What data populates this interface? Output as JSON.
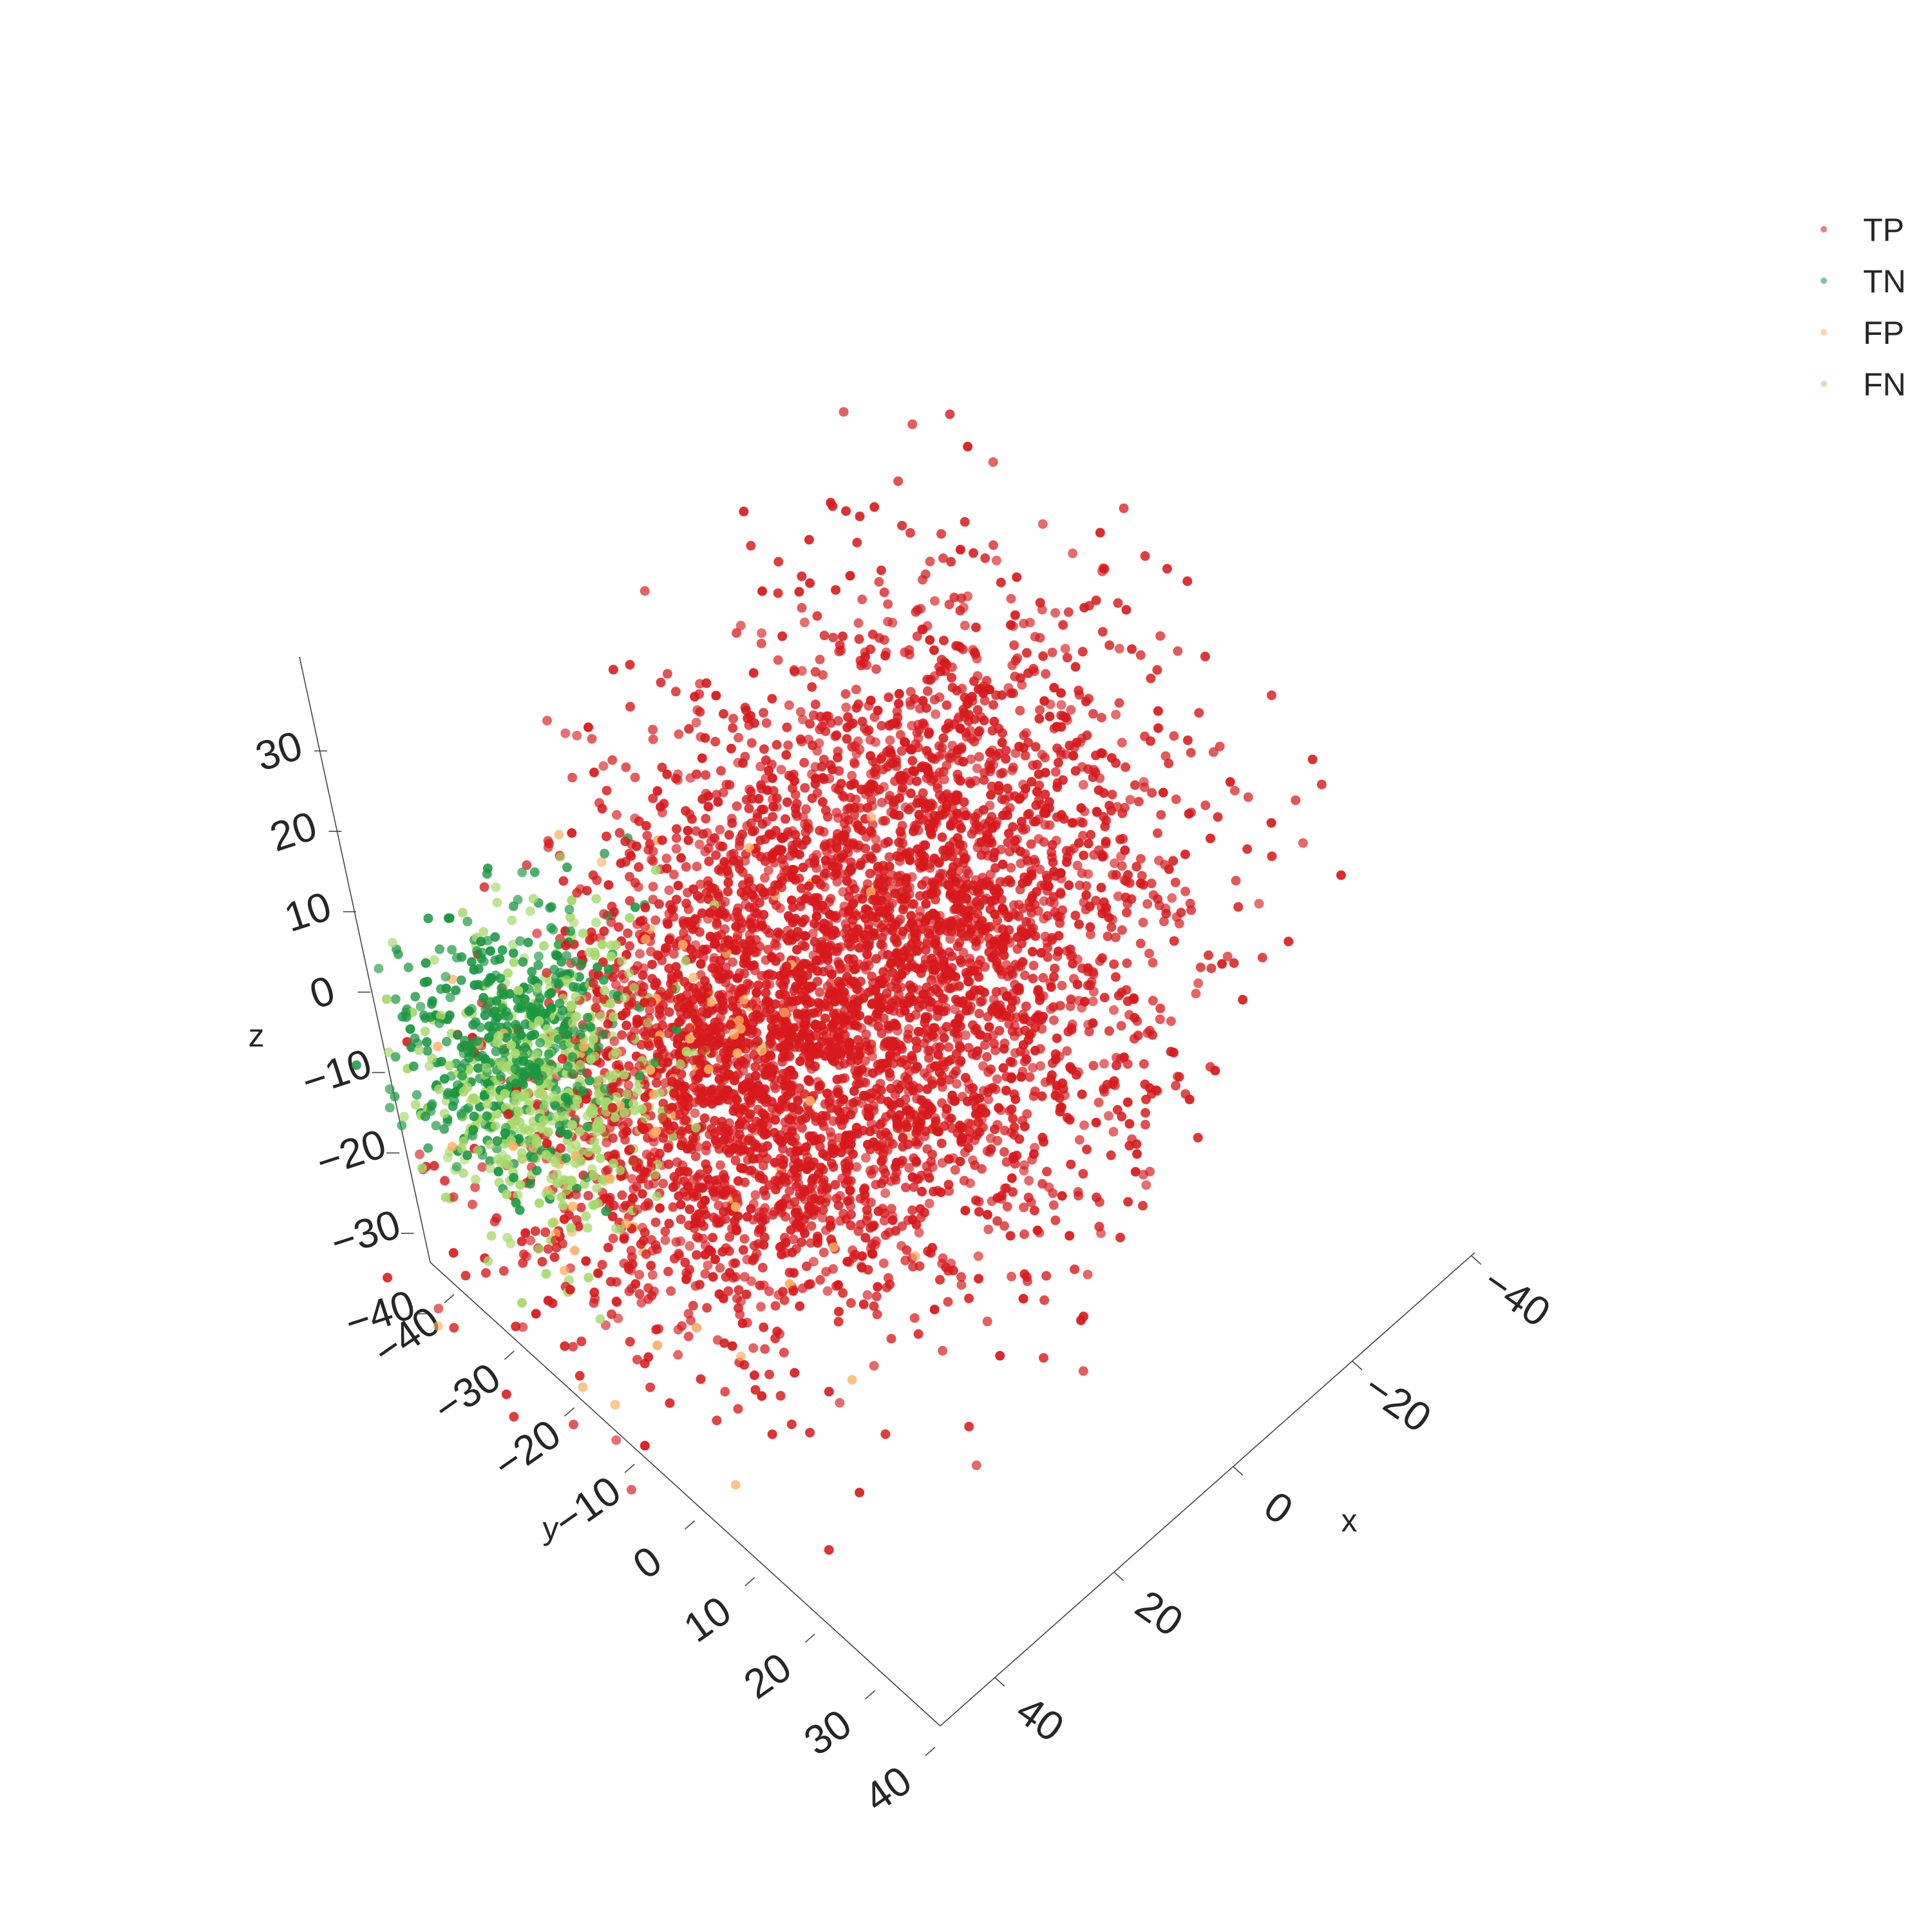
{
  "chart_data": {
    "type": "scatter",
    "dimensions": 3,
    "grid": false,
    "legend_placement": "top-right",
    "axes": {
      "x": {
        "label": "x",
        "range": [
          -45,
          45
        ],
        "ticks": [
          "−40",
          "−20",
          "0",
          "20",
          "40"
        ]
      },
      "y": {
        "label": "y",
        "range": [
          -45,
          45
        ],
        "ticks": [
          "−40",
          "−30",
          "−20",
          "−10",
          "0",
          "10",
          "20",
          "30",
          "40"
        ]
      },
      "z": {
        "label": "z",
        "range": [
          -40,
          40
        ],
        "ticks": [
          "−40",
          "−30",
          "−20",
          "−10",
          "0",
          "10",
          "20",
          "30"
        ]
      }
    },
    "series": [
      {
        "name": "TP",
        "color": "#d7191c",
        "clusters": [
          {
            "center": [
              -5,
              5,
              10
            ],
            "spread": 17,
            "count": 3300
          },
          {
            "center": [
              5,
              -12,
              -15
            ],
            "spread": 13,
            "count": 1600
          }
        ]
      },
      {
        "name": "TN",
        "color": "#1a9641",
        "clusters": [
          {
            "center": [
              32,
              -28,
              0
            ],
            "spread": 7,
            "count": 450
          }
        ]
      },
      {
        "name": "FP",
        "color": "#fdae61",
        "clusters": [
          {
            "center": [
              18,
              -10,
              -5
            ],
            "spread": 14,
            "count": 90
          }
        ]
      },
      {
        "name": "FN",
        "color": "#a6d96a",
        "clusters": [
          {
            "center": [
              30,
              -22,
              -4
            ],
            "spread": 8,
            "count": 450
          }
        ]
      }
    ]
  }
}
